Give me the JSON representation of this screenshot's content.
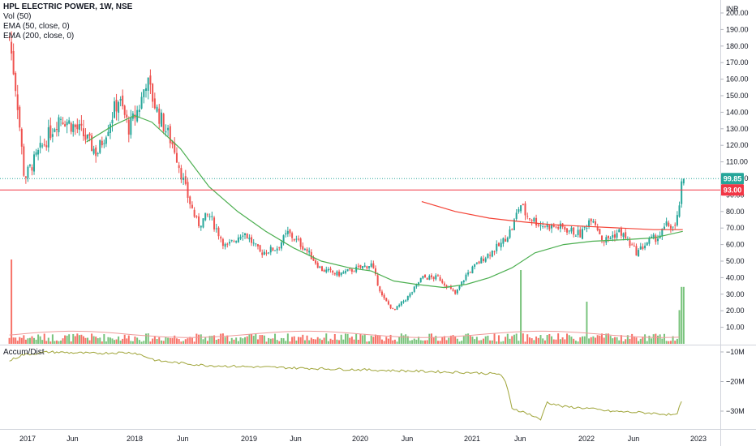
{
  "legend": {
    "title": "HPL ELECTRIC POWER, 1W, NSE",
    "vol": "Vol (50)",
    "ema50": "EMA (50, close, 0)",
    "ema200": "EMA (200, close, 0)"
  },
  "indicator_label": "Accum/Dist",
  "currency": "INR",
  "colors": {
    "up": "#26a69a",
    "down": "#ef5350",
    "vol_up": "#4caf50",
    "vol_down": "#f44336",
    "ema50": "#4caf50",
    "ema200": "#f44336",
    "ad": "#a0a53a",
    "last_tag": "#26a69a",
    "level_tag": "#f23645"
  },
  "chart_data": [
    {
      "type": "candlestick",
      "title": "HPL ELECTRIC POWER, 1W, NSE",
      "ylabel": "INR",
      "ylim": [
        0,
        205
      ],
      "yticks": [
        "200.00",
        "190.00",
        "180.00",
        "170.00",
        "160.00",
        "150.00",
        "140.00",
        "130.00",
        "120.00",
        "110.00",
        "100.00",
        "90.00",
        "80.00",
        "70.00",
        "60.00",
        "50.00",
        "40.00",
        "30.00",
        "20.00",
        "10.00"
      ],
      "xticks": [
        "2017",
        "Jun",
        "2018",
        "Jun",
        "2019",
        "Jun",
        "2020",
        "Jun",
        "2021",
        "Jun",
        "2022",
        "Jun",
        "2023"
      ],
      "last_price": "99.85",
      "horizontal_level": "93.00",
      "price_path": [
        [
          2016.83,
          185
        ],
        [
          2016.9,
          150
        ],
        [
          2016.97,
          100
        ],
        [
          2017.1,
          115
        ],
        [
          2017.3,
          138
        ],
        [
          2017.5,
          128
        ],
        [
          2017.65,
          115
        ],
        [
          2017.85,
          148
        ],
        [
          2017.95,
          130
        ],
        [
          2018.05,
          145
        ],
        [
          2018.1,
          160
        ],
        [
          2018.2,
          140
        ],
        [
          2018.35,
          118
        ],
        [
          2018.45,
          92
        ],
        [
          2018.55,
          72
        ],
        [
          2018.65,
          78
        ],
        [
          2018.8,
          58
        ],
        [
          2018.95,
          68
        ],
        [
          2019.1,
          55
        ],
        [
          2019.25,
          58
        ],
        [
          2019.35,
          67
        ],
        [
          2019.5,
          58
        ],
        [
          2019.65,
          45
        ],
        [
          2019.8,
          42
        ],
        [
          2019.95,
          45
        ],
        [
          2020.1,
          48
        ],
        [
          2020.2,
          28
        ],
        [
          2020.3,
          20
        ],
        [
          2020.45,
          30
        ],
        [
          2020.55,
          40
        ],
        [
          2020.7,
          40
        ],
        [
          2020.85,
          30
        ],
        [
          2020.95,
          42
        ],
        [
          2021.1,
          52
        ],
        [
          2021.25,
          60
        ],
        [
          2021.35,
          70
        ],
        [
          2021.42,
          85
        ],
        [
          2021.47,
          78
        ],
        [
          2021.6,
          72
        ],
        [
          2021.8,
          70
        ],
        [
          2021.95,
          66
        ],
        [
          2022.05,
          78
        ],
        [
          2022.15,
          62
        ],
        [
          2022.3,
          68
        ],
        [
          2022.45,
          55
        ],
        [
          2022.55,
          62
        ],
        [
          2022.65,
          65
        ],
        [
          2022.72,
          72
        ],
        [
          2022.8,
          70
        ],
        [
          2022.86,
          99.85
        ]
      ],
      "ema50_path": [
        [
          2017.55,
          122
        ],
        [
          2017.8,
          132
        ],
        [
          2018.0,
          138
        ],
        [
          2018.15,
          134
        ],
        [
          2018.4,
          118
        ],
        [
          2018.65,
          95
        ],
        [
          2018.9,
          80
        ],
        [
          2019.15,
          68
        ],
        [
          2019.4,
          58
        ],
        [
          2019.65,
          50
        ],
        [
          2019.9,
          46
        ],
        [
          2020.1,
          44
        ],
        [
          2020.3,
          38
        ],
        [
          2020.5,
          36
        ],
        [
          2020.75,
          34
        ],
        [
          2020.95,
          36
        ],
        [
          2021.15,
          40
        ],
        [
          2021.35,
          46
        ],
        [
          2021.55,
          55
        ],
        [
          2021.8,
          60
        ],
        [
          2022.05,
          62
        ],
        [
          2022.35,
          63
        ],
        [
          2022.6,
          64
        ],
        [
          2022.86,
          68
        ]
      ],
      "ema200_path": [
        [
          2020.55,
          86
        ],
        [
          2020.85,
          80
        ],
        [
          2021.15,
          76
        ],
        [
          2021.4,
          74
        ],
        [
          2021.7,
          72
        ],
        [
          2022.0,
          71
        ],
        [
          2022.3,
          70
        ],
        [
          2022.6,
          69
        ],
        [
          2022.86,
          69
        ]
      ],
      "volume_millions_notable": [
        [
          2016.85,
          40
        ],
        [
          2021.42,
          35
        ],
        [
          2022.0,
          20
        ],
        [
          2022.83,
          16
        ],
        [
          2022.86,
          27
        ],
        [
          2022.87,
          27
        ]
      ]
    },
    {
      "type": "line",
      "title": "Accum/Dist",
      "yticks": [
        "−10M",
        "−20M",
        "−30M"
      ],
      "ylim": [
        -34,
        -8
      ],
      "values": [
        [
          2016.83,
          -13
        ],
        [
          2016.95,
          -11
        ],
        [
          2017.2,
          -10
        ],
        [
          2017.6,
          -10.5
        ],
        [
          2017.9,
          -10.2
        ],
        [
          2018.0,
          -10.3
        ],
        [
          2018.2,
          -13
        ],
        [
          2018.6,
          -14.5
        ],
        [
          2019.0,
          -15
        ],
        [
          2019.5,
          -15.5
        ],
        [
          2020.0,
          -16
        ],
        [
          2020.5,
          -16.5
        ],
        [
          2021.0,
          -17
        ],
        [
          2021.25,
          -17.5
        ],
        [
          2021.3,
          -21
        ],
        [
          2021.35,
          -29
        ],
        [
          2021.5,
          -31
        ],
        [
          2021.6,
          -33
        ],
        [
          2021.65,
          -27
        ],
        [
          2021.8,
          -28.5
        ],
        [
          2022.0,
          -29
        ],
        [
          2022.2,
          -30
        ],
        [
          2022.5,
          -30.5
        ],
        [
          2022.7,
          -31
        ],
        [
          2022.8,
          -31.5
        ],
        [
          2022.86,
          -26
        ]
      ]
    }
  ]
}
